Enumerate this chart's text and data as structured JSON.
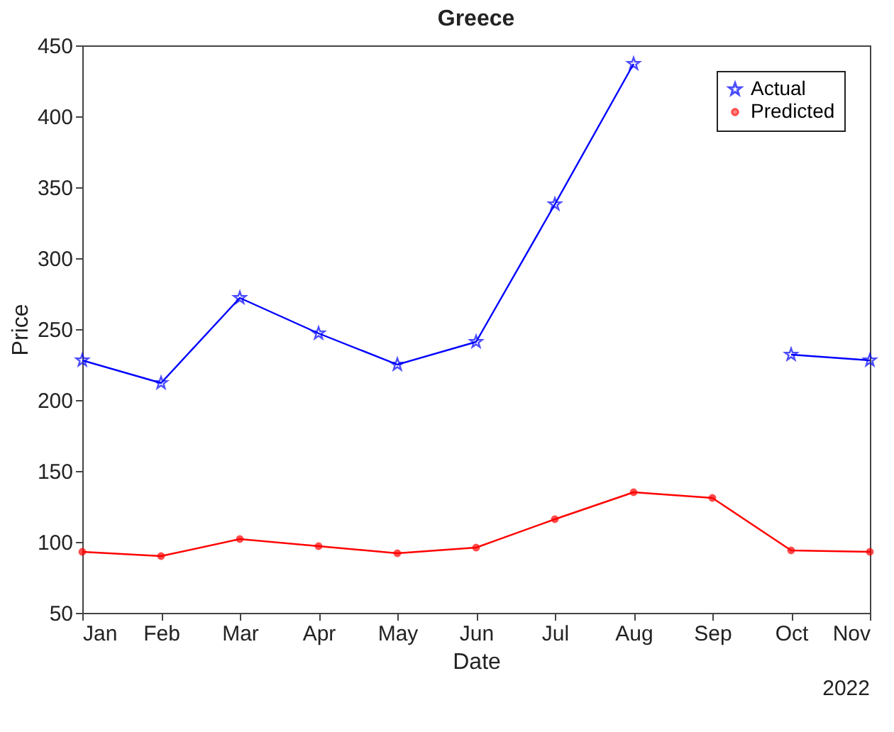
{
  "chart_data": {
    "type": "line",
    "title": "Greece",
    "xlabel": "Date",
    "ylabel": "Price",
    "categories": [
      "Jan",
      "Feb",
      "Mar",
      "Apr",
      "May",
      "Jun",
      "Jul",
      "Aug",
      "Sep",
      "Oct",
      "Nov"
    ],
    "series": [
      {
        "name": "Actual",
        "color": "#0000ff",
        "marker": "star",
        "values": [
          228,
          212,
          272,
          247,
          225,
          241,
          338,
          437,
          null,
          232,
          228
        ]
      },
      {
        "name": "Predicted",
        "color": "#ff0000",
        "marker": "circle",
        "values": [
          93,
          90,
          102,
          97,
          92,
          96,
          116,
          135,
          131,
          94,
          93
        ]
      }
    ],
    "ylim": [
      50,
      450
    ],
    "yticks": [
      50,
      100,
      150,
      200,
      250,
      300,
      350,
      400,
      450
    ],
    "grid": false,
    "legend": "top right",
    "line_style": "solid",
    "annotations": [
      "2022"
    ]
  }
}
